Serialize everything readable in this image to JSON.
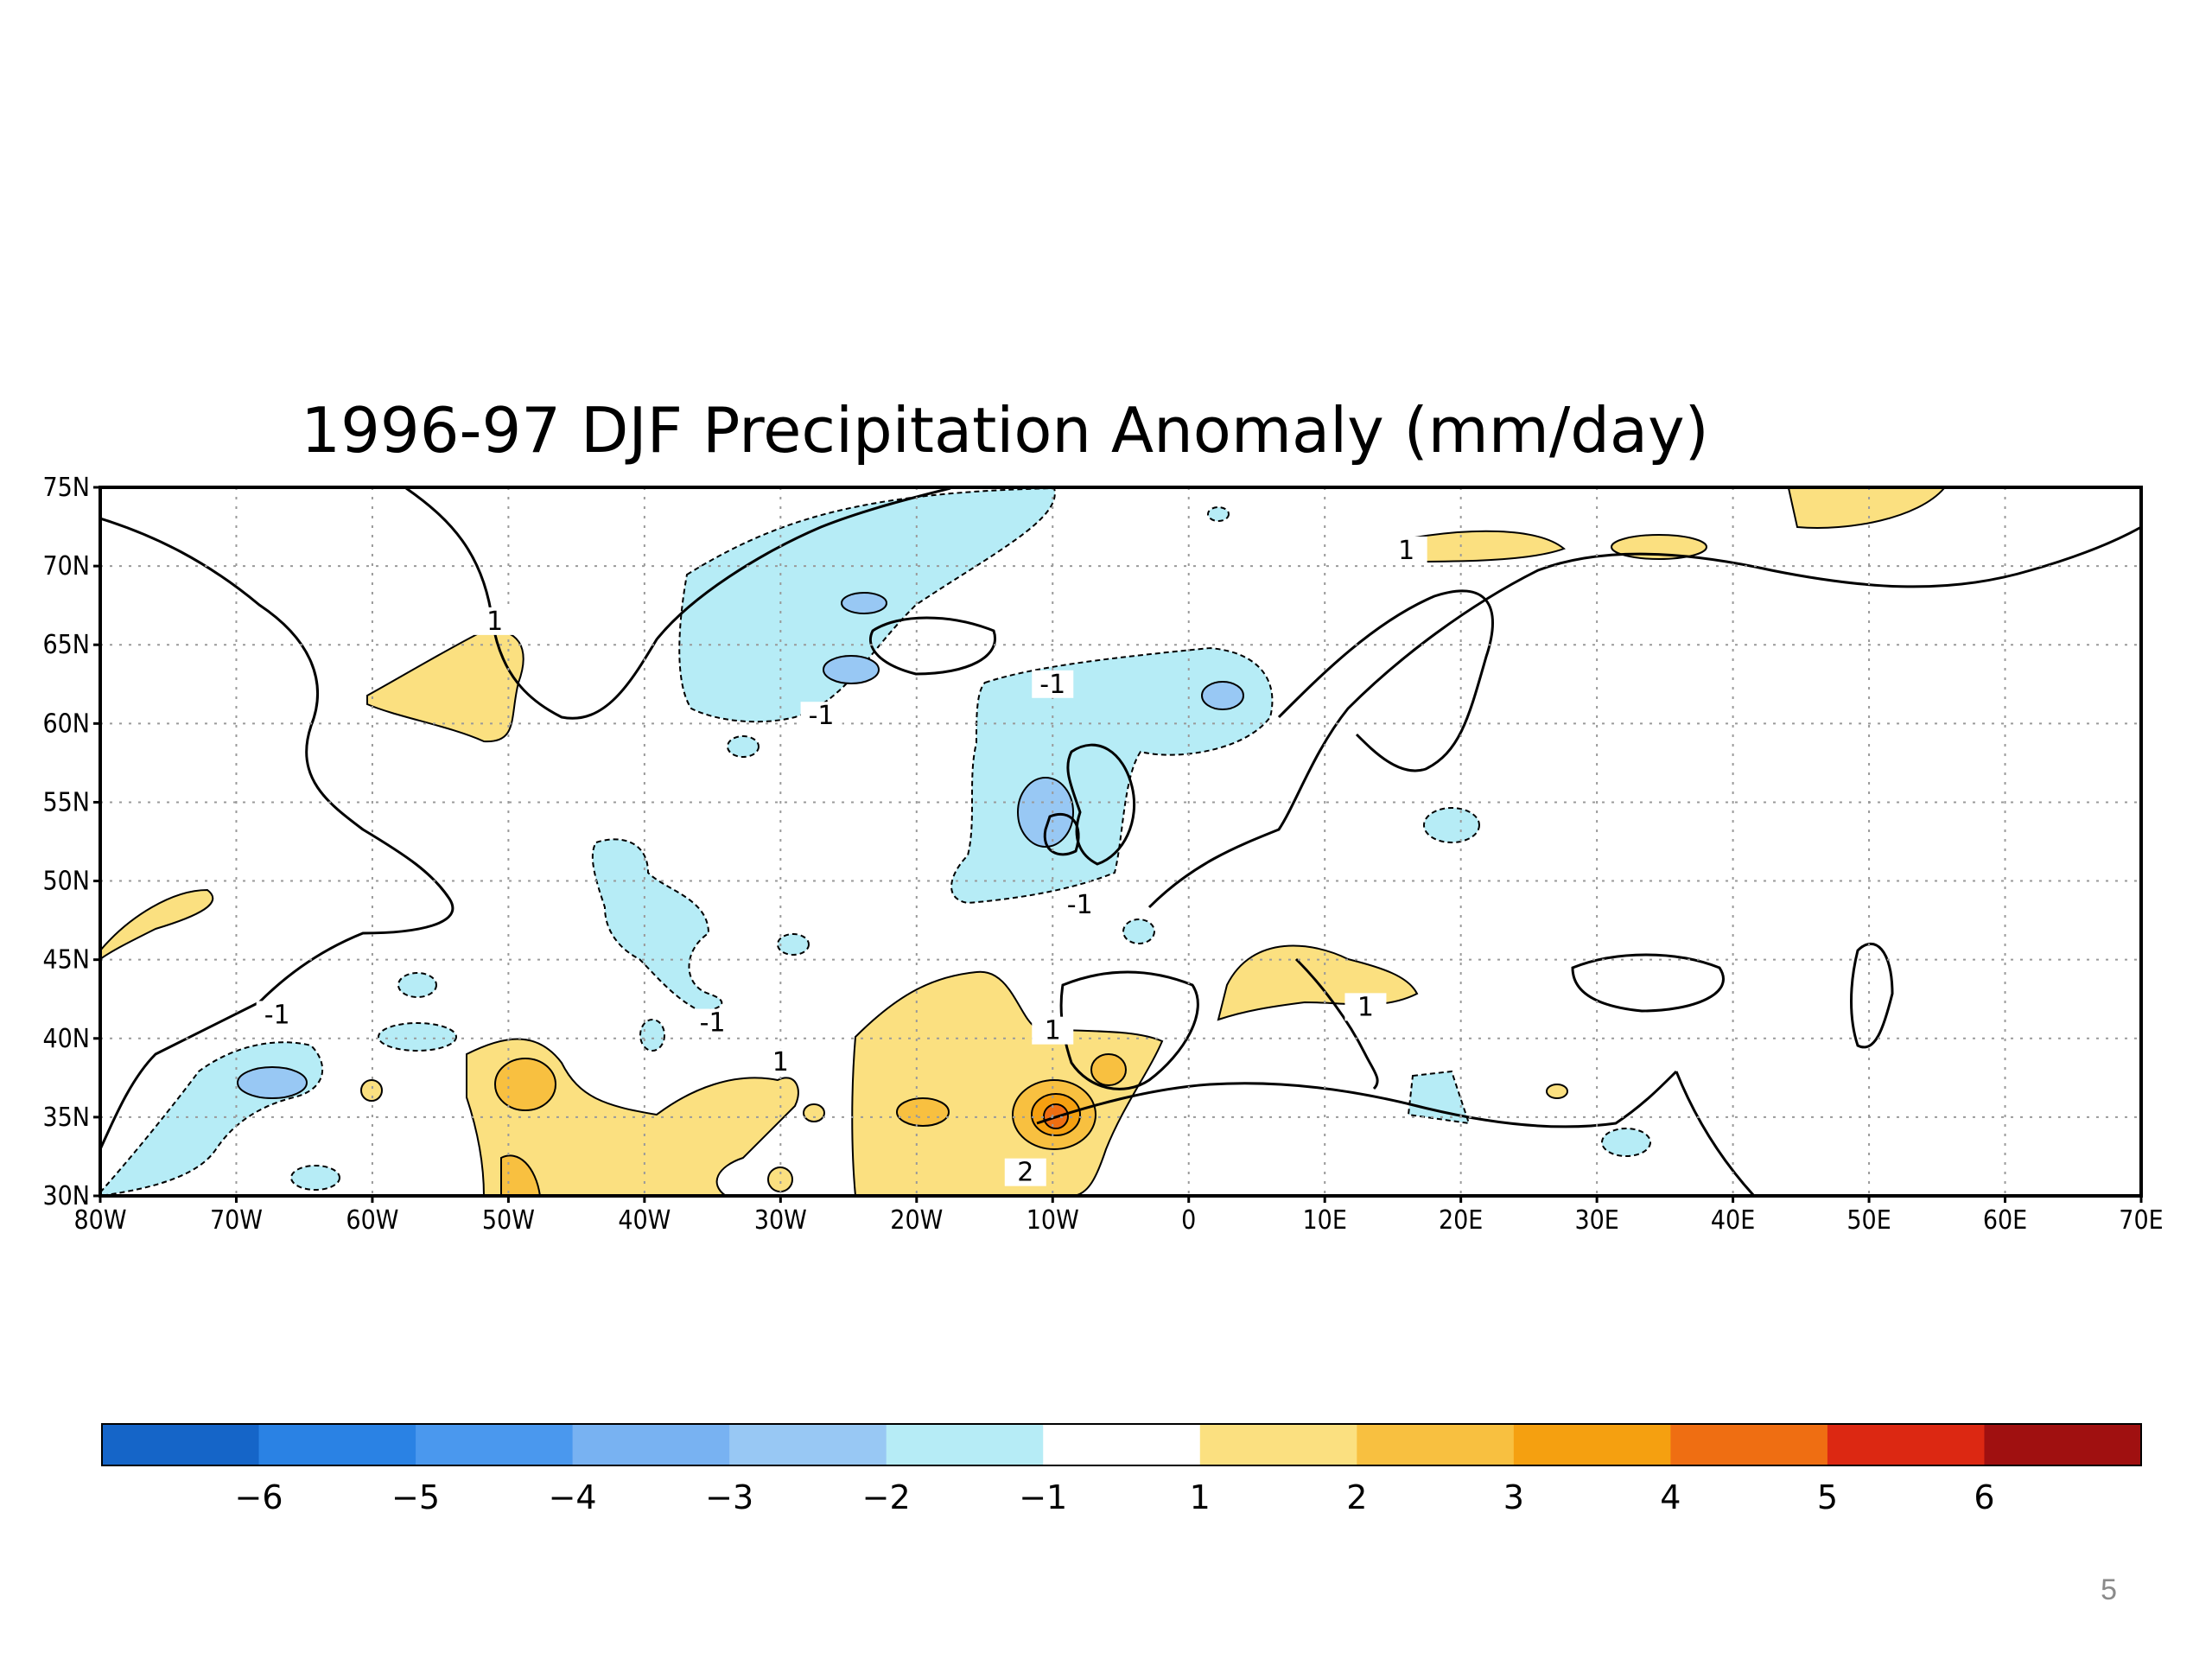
{
  "title": "1996-97 DJF Precipitation Anomaly (mm/day)",
  "page_number": "5",
  "map": {
    "lat_range": [
      30,
      75
    ],
    "lon_range": [
      -80,
      70
    ],
    "lat_ticks": [
      "30N",
      "35N",
      "40N",
      "45N",
      "50N",
      "55N",
      "60N",
      "65N",
      "70N",
      "75N"
    ],
    "lon_ticks": [
      "80W",
      "70W",
      "60W",
      "50W",
      "40W",
      "30W",
      "20W",
      "10W",
      "0",
      "10E",
      "20E",
      "30E",
      "40E",
      "50E",
      "60E",
      "70E"
    ],
    "grid": "dotted",
    "contour_labels": [
      {
        "text": "1",
        "lon": -51,
        "lat": 66.5
      },
      {
        "text": "1",
        "lon": 16,
        "lat": 71
      },
      {
        "text": "-1",
        "lon": -10,
        "lat": 62.5
      },
      {
        "text": "-1",
        "lon": -27,
        "lat": 60.5
      },
      {
        "text": "-1",
        "lon": -8,
        "lat": 48.5
      },
      {
        "text": "-1",
        "lon": -35,
        "lat": 41
      },
      {
        "text": "-1",
        "lon": -67,
        "lat": 41.5
      },
      {
        "text": "1",
        "lon": -30,
        "lat": 38.5
      },
      {
        "text": "1",
        "lon": -10,
        "lat": 40.5
      },
      {
        "text": "1",
        "lon": 13,
        "lat": 42
      },
      {
        "text": "2",
        "lon": -12,
        "lat": 31.5
      }
    ]
  },
  "colorbar": {
    "colors": [
      "#1565c8",
      "#2a82e4",
      "#4a98ee",
      "#78b2f2",
      "#98c8f4",
      "#b6ecf6",
      "#ffffff",
      "#fbe080",
      "#f8c040",
      "#f5a010",
      "#ef6e12",
      "#dc2812",
      "#a01010"
    ],
    "labels": [
      "-6",
      "-5",
      "-4",
      "-3",
      "-2",
      "-1",
      "1",
      "2",
      "3",
      "4",
      "5",
      "6"
    ]
  },
  "colors": {
    "neg1": "#b6ecf6",
    "neg2": "#98c8f4",
    "pos1": "#fbe080",
    "pos2": "#f8c040",
    "pos3": "#f5a010",
    "pos4": "#ef6e12"
  }
}
